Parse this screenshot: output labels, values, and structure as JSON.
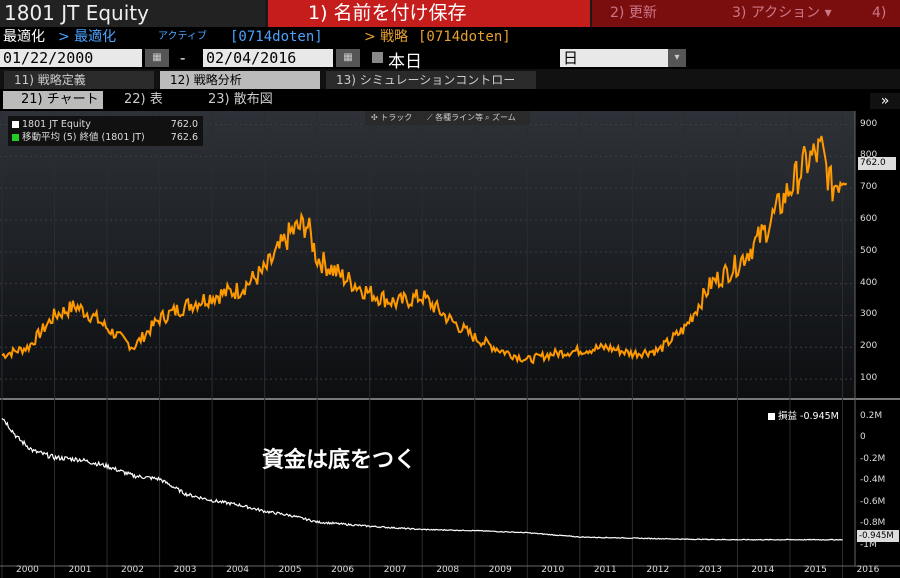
{
  "header": {
    "ticker": "1801 JT Equity",
    "save_tab": "1) 名前を付け保存",
    "update_tab": "2) 更新",
    "action_tab": "3) アクション ▾",
    "extra_tab": "4)"
  },
  "settings": {
    "optimize_label": "最適化",
    "optimize_active": "> 最適化",
    "active_label": "アクティブ",
    "strategy_code": "[0714doten]",
    "strategy_label": "> 戦略",
    "strategy_code2": "[0714doten]"
  },
  "dates": {
    "start": "01/22/2000",
    "separator": "-",
    "end": "02/04/2016",
    "today_label": "本日",
    "period": "日"
  },
  "tabs": [
    {
      "label": "11) 戦略定義"
    },
    {
      "label": "12) 戦略分析"
    },
    {
      "label": "13) シミュレーションコントロール"
    }
  ],
  "subtabs": [
    {
      "label": "21) チャート"
    },
    {
      "label": "22) 表"
    },
    {
      "label": "23) 散布図"
    }
  ],
  "expand_icon": "»",
  "toolbar": {
    "track": "✣ トラック",
    "lines": "⟋ 各種ライン等",
    "zoom": "⌕ ズーム"
  },
  "legend": {
    "series1_name": "1801 JT Equity",
    "series1_value": "762.0",
    "series1_color": "#ffffff",
    "series2_name": "移動平均 (5) 終値 (1801 JT)",
    "series2_value": "762.6",
    "series2_color": "#22cc22"
  },
  "annotation": "資金は底をつく",
  "pnl_legend": {
    "name": "損益",
    "value": "-0.945M"
  },
  "chart_data": {
    "type": "line",
    "price_panel": {
      "yticks": [
        100,
        200,
        300,
        400,
        500,
        600,
        700,
        800,
        900
      ],
      "ylim": [
        50,
        930
      ],
      "last_value_badge": "762.0",
      "x": [
        2000.0,
        2000.5,
        2001.0,
        2001.4,
        2001.8,
        2002.0,
        2002.5,
        2003.0,
        2003.5,
        2004.0,
        2004.5,
        2005.0,
        2005.5,
        2005.8,
        2006.0,
        2006.5,
        2007.0,
        2007.5,
        2008.0,
        2008.5,
        2009.0,
        2009.5,
        2010.0,
        2010.5,
        2011.0,
        2011.5,
        2012.0,
        2012.5,
        2013.0,
        2013.5,
        2014.0,
        2014.5,
        2015.0,
        2015.3,
        2015.6,
        2015.8,
        2016.1
      ],
      "y": [
        175,
        200,
        300,
        330,
        290,
        260,
        200,
        290,
        330,
        360,
        380,
        440,
        560,
        590,
        480,
        420,
        370,
        340,
        360,
        290,
        230,
        190,
        160,
        180,
        190,
        200,
        180,
        190,
        260,
        400,
        460,
        560,
        700,
        780,
        820,
        700,
        762
      ]
    },
    "pnl_panel": {
      "yticks": [
        "0.2M",
        "0",
        "-0.2M",
        "-0.4M",
        "-0.6M",
        "-0.8M",
        "-1M"
      ],
      "ylim": [
        -1.05,
        0.3
      ],
      "last_value_badge": "-0.945M",
      "x": [
        2000.0,
        2000.3,
        2000.6,
        2001.0,
        2001.5,
        2002.0,
        2002.5,
        2003.0,
        2003.5,
        2004.0,
        2004.5,
        2005.0,
        2005.5,
        2006.0,
        2006.5,
        2007.0,
        2008.0,
        2009.0,
        2010.0,
        2011.0,
        2012.0,
        2013.0,
        2014.0,
        2015.0,
        2016.0
      ],
      "y": [
        0.2,
        0.0,
        -0.12,
        -0.18,
        -0.2,
        -0.26,
        -0.35,
        -0.38,
        -0.52,
        -0.58,
        -0.62,
        -0.68,
        -0.72,
        -0.78,
        -0.8,
        -0.82,
        -0.85,
        -0.86,
        -0.88,
        -0.92,
        -0.93,
        -0.94,
        -0.945,
        -0.945,
        -0.945
      ]
    },
    "xticks": [
      "2000",
      "2001",
      "2002",
      "2003",
      "2004",
      "2005",
      "2006",
      "2007",
      "2008",
      "2009",
      "2010",
      "2011",
      "2012",
      "2013",
      "2014",
      "2015",
      "2016"
    ],
    "colors": {
      "price": "#ff9900",
      "high_marker": "#dd3322",
      "low_marker": "#22bb33",
      "pnl": "#ffffff"
    },
    "grid": true,
    "legend_position": "top-left"
  }
}
